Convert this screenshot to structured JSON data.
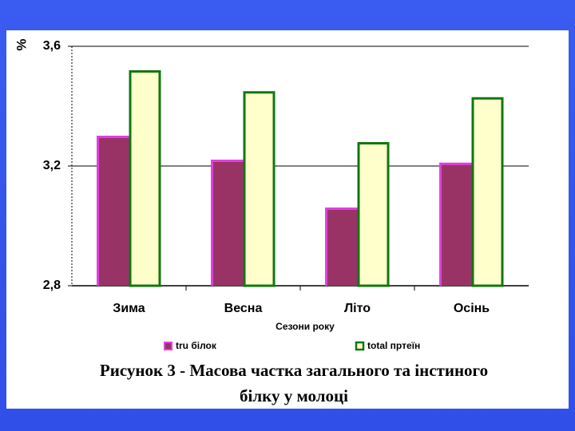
{
  "chart_data": {
    "type": "bar",
    "categories": [
      "Зима",
      "Весна",
      "Літо",
      "Осінь"
    ],
    "series": [
      {
        "name": "tru білок",
        "values": [
          3.3,
          3.22,
          3.06,
          3.21
        ],
        "color": "#993366",
        "highlight": "#e040e0"
      },
      {
        "name": "total пртеїн",
        "values": [
          3.52,
          3.45,
          3.28,
          3.43
        ],
        "color": "#ffffcc",
        "border": "#117711"
      }
    ],
    "xlabel": "Сезони року",
    "ylabel": "%",
    "ylim": [
      2.8,
      3.6
    ],
    "yticks": [
      "2,8",
      "3,2",
      "3,6"
    ],
    "ytick_values": [
      2.8,
      3.2,
      3.6
    ],
    "legend_position": "bottom",
    "grid": true
  },
  "caption": {
    "line1": "Рисунок 3 - Масова частка загального та інстиного",
    "line2": "білку у молоці"
  },
  "colors": {
    "background": "#3a5cf0",
    "panel": "#ffffff"
  }
}
